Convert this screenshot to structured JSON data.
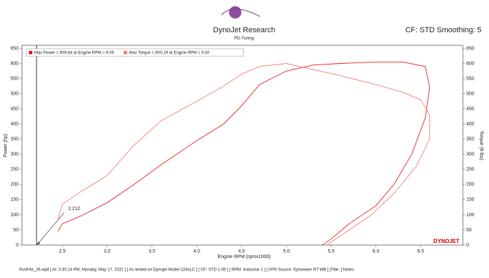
{
  "chart_data": {
    "type": "line",
    "title": "DynoJet Research",
    "subtitle": "PD-Tuning",
    "corner_text": "CF: STD Smoothing: 5",
    "x_label": "Engine RPM (rpmx1000)",
    "y_label": "Power (hp)",
    "y2_label": "Torque (ft-lbs)",
    "brand": "DYNOJET",
    "footer": "RunFile_26.wp8 [ AI: 3:30:14 PM, Monday, May 17, 2021 ] [ As tested on Dynojet Model 224xLC ] [ CF: STD 1.05 ] [ RPM: Inductive 1 ] [ AFR Source: Dynoware RT WB ] [Title: ]  Notes:",
    "cursor": 2.212,
    "xlim": [
      2.05,
      6.97
    ],
    "ylim": [
      0,
      660
    ],
    "y2lim": [
      0,
      660
    ],
    "xticks": [
      2.5,
      {
        "value": 3,
        "label": "3.0"
      },
      3.5,
      {
        "value": 4,
        "label": "4.0"
      },
      4.5,
      {
        "value": 5,
        "label": "5.0"
      },
      5.5,
      {
        "value": 6,
        "label": "6.0"
      },
      6.5
    ],
    "yticks": [
      0,
      50,
      100,
      150,
      200,
      250,
      300,
      350,
      400,
      450,
      500,
      550,
      600,
      650
    ],
    "y2ticks": [
      0,
      50,
      100,
      150,
      200,
      250,
      300,
      350,
      400,
      450,
      500,
      550,
      600,
      650
    ],
    "series": [
      {
        "name": "Max Power = 609.64 at Engine RPM = 6.09",
        "color": "#e8191a",
        "x": [
          2.45,
          2.5,
          2.7,
          3.0,
          3.3,
          3.6,
          4.0,
          4.3,
          4.5,
          4.7,
          5.0,
          5.3,
          5.6,
          6.0,
          6.3,
          6.55,
          6.6,
          6.55,
          6.4,
          6.2,
          6.0,
          5.7,
          5.5,
          5.4
        ],
        "values": [
          45,
          70,
          95,
          140,
          200,
          265,
          345,
          400,
          460,
          530,
          575,
          595,
          600,
          605,
          605,
          590,
          520,
          420,
          300,
          200,
          130,
          70,
          20,
          0
        ]
      },
      {
        "name": "Max Torque = 600.19 at Engine RPM = 5.00",
        "color": "#f47a7a",
        "axis": "y2",
        "x": [
          2.45,
          2.5,
          2.7,
          3.0,
          3.3,
          3.6,
          4.0,
          4.3,
          4.5,
          4.7,
          5.0,
          5.3,
          5.6,
          6.0,
          6.3,
          6.5,
          6.6,
          6.6,
          6.45,
          6.2,
          5.95,
          5.7,
          5.5,
          5.45
        ],
        "values": [
          85,
          135,
          175,
          230,
          330,
          410,
          475,
          525,
          565,
          590,
          600,
          580,
          560,
          530,
          505,
          480,
          430,
          350,
          260,
          170,
          100,
          50,
          10,
          0
        ]
      }
    ]
  }
}
